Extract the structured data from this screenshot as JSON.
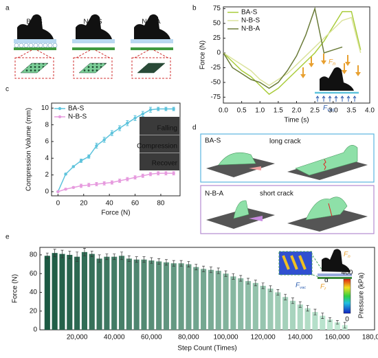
{
  "figure": {
    "panel_labels": [
      "a",
      "b",
      "c",
      "d",
      "e"
    ],
    "a_labels": [
      "BA-S",
      "N-B-S",
      "N-B-A"
    ],
    "b_inset": {
      "fn": {
        "main": "F",
        "sub": "n"
      },
      "fvac": {
        "main": "F",
        "sub": "vac"
      }
    },
    "c_inset": [
      "Falling",
      "Compression",
      "Recover"
    ],
    "d_labels": {
      "top_name": "BA-S",
      "top_note": "long crack",
      "bottom_name": "N-B-A",
      "bottom_note": "short crack"
    },
    "e_inset": {
      "fn": {
        "main": "F",
        "sub": "n"
      },
      "ff": {
        "main": "F",
        "sub": "f"
      },
      "fvac": {
        "main": "F",
        "sub": "vac"
      },
      "alpha": "α"
    }
  },
  "chart_data": [
    {
      "type": "line",
      "xlabel": "Time (s)",
      "ylabel": "Force (N)",
      "legend": "upper left",
      "x": [
        0,
        0.25,
        0.5,
        0.75,
        1.0,
        1.25,
        1.5,
        1.75,
        2.0,
        2.25,
        2.5,
        2.75,
        3.0,
        3.25,
        3.5,
        3.75
      ],
      "series": [
        {
          "name": "BA-S",
          "color": "#a9cc3a",
          "values": [
            0,
            -15,
            -30,
            -40,
            -55,
            -70,
            -60,
            -45,
            -30,
            -15,
            0,
            20,
            45,
            70,
            70,
            5
          ]
        },
        {
          "name": "N-B-S",
          "color": "#dbe39c",
          "values": [
            0,
            -10,
            -20,
            -30,
            -45,
            -55,
            -45,
            -35,
            -20,
            -5,
            10,
            25,
            40,
            55,
            60,
            0
          ]
        },
        {
          "name": "N-B-A",
          "color": "#6a7b38",
          "values": [
            0,
            -25,
            -35,
            -45,
            -50,
            -60,
            -50,
            -30,
            -5,
            30,
            75,
            0,
            5,
            10,
            null,
            null
          ]
        }
      ],
      "xlim": [
        0,
        4
      ],
      "ylim": [
        -85,
        78
      ],
      "xticks": [
        {
          "value": 0,
          "label": "0.0"
        },
        0.5,
        {
          "value": 1,
          "label": "1.0"
        },
        1.5,
        {
          "value": 2,
          "label": "2.0"
        },
        2.5,
        {
          "value": 3,
          "label": "3.0"
        },
        3.5,
        {
          "value": 4,
          "label": "4.0"
        }
      ],
      "yticks": [
        -75,
        -50,
        -25,
        0,
        25,
        50,
        75
      ]
    },
    {
      "type": "errorline",
      "xlabel": "Force (N)",
      "ylabel": "Compression Volume (mm)",
      "legend": "upper left",
      "x": [
        0,
        6,
        12,
        18,
        24,
        30,
        36,
        42,
        48,
        54,
        60,
        66,
        72,
        78,
        84,
        90
      ],
      "series": [
        {
          "name": "BA-S",
          "color": "#5ec3dc",
          "values": [
            0,
            2.1,
            3.0,
            3.7,
            4.2,
            5.5,
            6.2,
            7.0,
            7.6,
            8.2,
            8.8,
            9.3,
            9.8,
            9.9,
            9.9,
            9.9
          ],
          "errors": [
            0,
            0.1,
            0.1,
            0.2,
            0.2,
            0.3,
            0.3,
            0.3,
            0.3,
            0.3,
            0.3,
            0.3,
            0.3,
            0.2,
            0.2,
            0.2
          ]
        },
        {
          "name": "N-B-S",
          "color": "#e69ade",
          "values": [
            0,
            0.3,
            0.5,
            0.7,
            0.8,
            0.9,
            1.0,
            1.1,
            1.3,
            1.5,
            1.7,
            1.9,
            2.1,
            2.2,
            2.2,
            2.2
          ],
          "errors": [
            0,
            0.1,
            0.1,
            0.2,
            0.2,
            0.2,
            0.2,
            0.2,
            0.2,
            0.2,
            0.2,
            0.2,
            0.2,
            0.2,
            0.2,
            0.2
          ]
        }
      ],
      "xlim": [
        -5,
        95
      ],
      "ylim": [
        -0.5,
        10.6
      ],
      "xticks": [
        0,
        20,
        40,
        60,
        80
      ],
      "yticks": [
        0,
        2,
        4,
        6,
        8,
        10
      ]
    },
    {
      "type": "bar",
      "xlabel": "Step Count (Times)",
      "ylabel": "Force (N)",
      "colors": [
        "#1c5a43",
        "#c6eed8"
      ],
      "x": [
        4000,
        8000,
        12000,
        16000,
        20000,
        24000,
        28000,
        32000,
        36000,
        40000,
        44000,
        48000,
        52000,
        56000,
        60000,
        64000,
        68000,
        72000,
        76000,
        80000,
        84000,
        88000,
        92000,
        96000,
        100000,
        104000,
        108000,
        112000,
        116000,
        120000,
        124000,
        128000,
        132000,
        136000,
        140000,
        144000,
        148000,
        152000,
        156000,
        160000,
        164000
      ],
      "values": [
        79,
        82,
        81,
        80,
        78,
        83,
        81,
        76,
        78,
        78,
        79,
        76,
        75,
        75,
        74,
        73,
        72,
        71,
        71,
        70,
        67,
        65,
        64,
        63,
        60,
        57,
        55,
        52,
        50,
        47,
        44,
        40,
        35,
        31,
        27,
        23,
        19,
        15,
        11,
        8,
        5
      ],
      "errors": [
        3,
        4,
        4,
        4,
        5,
        4,
        3,
        4,
        3,
        3,
        4,
        3,
        3,
        3,
        3,
        3,
        3,
        3,
        3,
        3,
        3,
        3,
        3,
        3,
        3,
        3,
        3,
        3,
        3,
        3,
        3,
        3,
        3,
        3,
        3,
        3,
        3,
        3,
        2,
        2,
        3
      ],
      "xlim": [
        0,
        180000
      ],
      "ylim": [
        0,
        88
      ],
      "xticks": [
        {
          "value": 20000,
          "label": "20,000"
        },
        {
          "value": 40000,
          "label": "40,000"
        },
        {
          "value": 60000,
          "label": "60,000"
        },
        {
          "value": 80000,
          "label": "80,000"
        },
        {
          "value": 100000,
          "label": "100,000"
        },
        {
          "value": 120000,
          "label": "120,000"
        },
        {
          "value": 140000,
          "label": "140,000"
        },
        {
          "value": 160000,
          "label": "160,000"
        },
        {
          "value": 180000,
          "label": "180,000"
        }
      ],
      "yticks": [
        0,
        20,
        40,
        60,
        80
      ],
      "colorbar": {
        "label": "Pressure (kPa)",
        "ticks": [
          0,
          400
        ]
      }
    }
  ]
}
